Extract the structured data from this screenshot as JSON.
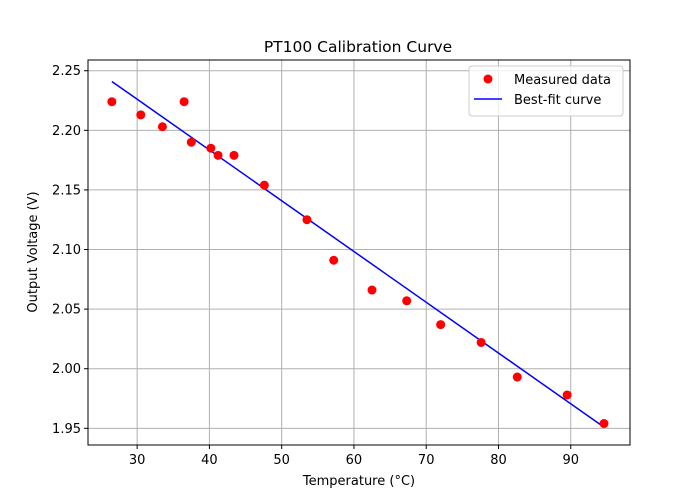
{
  "chart_data": {
    "type": "scatter",
    "title": "PT100 Calibration Curve",
    "xlabel": "Temperature (°C)",
    "ylabel": "Output Voltage (V)",
    "xlim": [
      23.2,
      98.2
    ],
    "ylim": [
      1.936,
      2.259
    ],
    "xticks": [
      30,
      40,
      50,
      60,
      70,
      80,
      90
    ],
    "yticks": [
      1.95,
      2.0,
      2.05,
      2.1,
      2.15,
      2.2,
      2.25
    ],
    "grid": true,
    "legend_position": "top-right",
    "series": [
      {
        "name": "Measured data",
        "kind": "scatter",
        "color": "#ff0000",
        "points": [
          [
            26.5,
            2.224
          ],
          [
            30.5,
            2.213
          ],
          [
            33.5,
            2.203
          ],
          [
            36.5,
            2.224
          ],
          [
            37.5,
            2.19
          ],
          [
            40.2,
            2.185
          ],
          [
            41.2,
            2.179
          ],
          [
            43.4,
            2.179
          ],
          [
            47.6,
            2.154
          ],
          [
            53.5,
            2.125
          ],
          [
            57.2,
            2.091
          ],
          [
            62.5,
            2.066
          ],
          [
            67.3,
            2.057
          ],
          [
            72.0,
            2.037
          ],
          [
            77.6,
            2.022
          ],
          [
            82.6,
            1.993
          ],
          [
            89.5,
            1.978
          ],
          [
            94.6,
            1.954
          ]
        ]
      },
      {
        "name": "Best-fit curve",
        "kind": "line",
        "color": "#0000ff",
        "points": [
          [
            26.5,
            2.241
          ],
          [
            94.6,
            1.951
          ]
        ]
      }
    ]
  }
}
